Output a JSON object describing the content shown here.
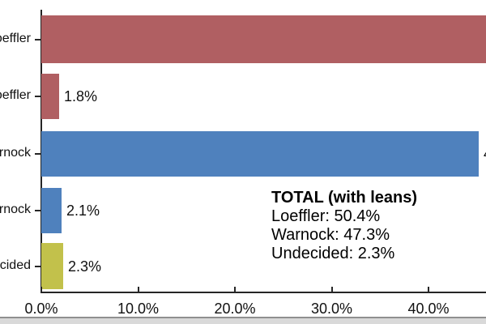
{
  "chart_data": {
    "type": "bar",
    "orientation": "horizontal",
    "rows": [
      {
        "category_visible": "oeffler",
        "value": 48.6,
        "label_visible": "",
        "color": "#b05f62"
      },
      {
        "category_visible": "oeffler",
        "value": 1.8,
        "label_visible": "1.8%",
        "color": "#b05f62"
      },
      {
        "category_visible": "rnock",
        "value": 45.2,
        "label_visible": "4",
        "color": "#4f81bd"
      },
      {
        "category_visible": "rnock",
        "value": 2.1,
        "label_visible": "2.1%",
        "color": "#4f81bd"
      },
      {
        "category_visible": "ecided",
        "value": 2.3,
        "label_visible": "2.3%",
        "color": "#c2c14b"
      }
    ],
    "x_axis": {
      "ticks": [
        {
          "label": "0.0%",
          "value": 0
        },
        {
          "label": "10.0%",
          "value": 10
        },
        {
          "label": "20.0%",
          "value": 20
        },
        {
          "label": "30.0%",
          "value": 30
        },
        {
          "label": "40.0%",
          "value": 40
        }
      ],
      "visible_max": 46.1
    },
    "grid": false,
    "legend": false
  },
  "annotation": {
    "title": "TOTAL (with leans)",
    "lines": [
      "Loeffler: 50.4%",
      "Warnock: 47.3%",
      "Undecided: 2.3%"
    ]
  },
  "colors": {
    "loeffler_red": "#b05f62",
    "warnock_blue": "#4f81bd",
    "undecided_olive": "#c2c14b",
    "axis": "#262626",
    "text": "#111111",
    "bottom_strip": "#d9d9d9",
    "bottom_strip_line": "#909090"
  }
}
